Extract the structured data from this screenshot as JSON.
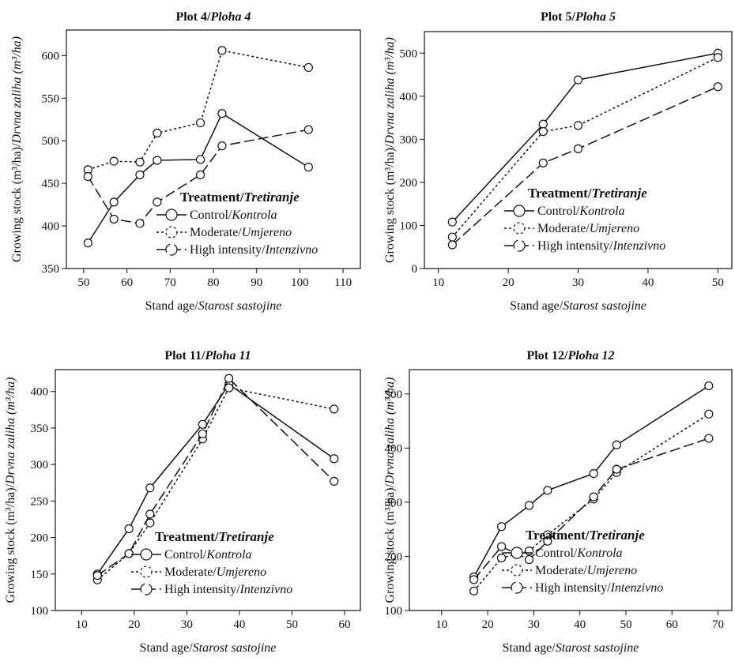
{
  "chart_data": [
    {
      "type": "line",
      "title": "Plot 4/",
      "title_italic": "Ploha 4",
      "xlabel": "Stand age/",
      "xlabel_italic": "Starost sastojine",
      "ylabel": "Growing stock (m³/ha)/",
      "ylabel_italic": "Drvna zaliha (m³/ha)",
      "xlim": [
        46,
        114
      ],
      "ylim": [
        350,
        630
      ],
      "xticks": [
        50,
        60,
        70,
        80,
        90,
        100,
        110
      ],
      "yticks": [
        350,
        400,
        450,
        500,
        550,
        600
      ],
      "legend_position": "bottom-right",
      "series": [
        {
          "name": "Control/",
          "name_italic": "Kontrola",
          "dash": "solid",
          "x": [
            51,
            57,
            63,
            67,
            77,
            82,
            102
          ],
          "y": [
            380,
            428,
            460,
            477,
            478,
            532,
            469
          ]
        },
        {
          "name": "Moderate/",
          "name_italic": "Umjereno",
          "dash": "dotted",
          "x": [
            51,
            57,
            63,
            67,
            77,
            82,
            102
          ],
          "y": [
            466,
            476,
            475,
            509,
            521,
            606,
            586
          ]
        },
        {
          "name": "High intensity/",
          "name_italic": "Intenzivno",
          "dash": "dashed",
          "x": [
            51,
            57,
            63,
            67,
            77,
            82,
            102
          ],
          "y": [
            458,
            408,
            403,
            428,
            460,
            494,
            513
          ]
        }
      ]
    },
    {
      "type": "line",
      "title": "Plot 5/",
      "title_italic": "Ploha 5",
      "xlabel": "Stand age/",
      "xlabel_italic": "Starost sastojine",
      "ylabel": "Growing stock (m³/ha)/",
      "ylabel_italic": "Drvna zaliha (m³/ha)",
      "xlim": [
        8,
        52
      ],
      "ylim": [
        0,
        550
      ],
      "xticks": [
        10,
        20,
        30,
        40,
        50
      ],
      "yticks": [
        0,
        100,
        200,
        300,
        400,
        500
      ],
      "legend_position": "bottom-right",
      "series": [
        {
          "name": "Control/",
          "name_italic": "Kontrola",
          "dash": "solid",
          "x": [
            12,
            25,
            30,
            50
          ],
          "y": [
            108,
            335,
            438,
            500
          ]
        },
        {
          "name": "Moderate/",
          "name_italic": "Umjereno",
          "dash": "dotted",
          "x": [
            12,
            25,
            30,
            50
          ],
          "y": [
            73,
            318,
            332,
            490
          ]
        },
        {
          "name": "High intensity/",
          "name_italic": "Intenzivno",
          "dash": "dashed",
          "x": [
            12,
            25,
            30,
            50
          ],
          "y": [
            55,
            245,
            278,
            422
          ]
        }
      ]
    },
    {
      "type": "line",
      "title": "Plot 11/",
      "title_italic": "Ploha 11",
      "xlabel": "Stand age/",
      "xlabel_italic": "Starost sastojine",
      "ylabel": "Growing stock (m³/ha)/",
      "ylabel_italic": "Drvna zaliha (m³/ha)",
      "xlim": [
        5,
        63
      ],
      "ylim": [
        100,
        430
      ],
      "xticks": [
        10,
        20,
        30,
        40,
        50,
        60
      ],
      "yticks": [
        100,
        150,
        200,
        250,
        300,
        350,
        400
      ],
      "legend_position": "bottom-right",
      "series": [
        {
          "name": "Control/",
          "name_italic": "Kontrola",
          "dash": "solid",
          "x": [
            13,
            19,
            23,
            33,
            38,
            58
          ],
          "y": [
            150,
            212,
            268,
            355,
            410,
            308
          ]
        },
        {
          "name": "Moderate/",
          "name_italic": "Umjereno",
          "dash": "dotted",
          "x": [
            13,
            19,
            23,
            33,
            38,
            58
          ],
          "y": [
            142,
            178,
            220,
            335,
            405,
            376
          ]
        },
        {
          "name": "High intensity/",
          "name_italic": "Intenzivno",
          "dash": "dashed",
          "x": [
            13,
            19,
            23,
            33,
            38,
            58
          ],
          "y": [
            148,
            178,
            232,
            342,
            418,
            277
          ]
        }
      ]
    },
    {
      "type": "line",
      "title": "Plot 12/",
      "title_italic": "Ploha 12",
      "xlabel": "Stand age/",
      "xlabel_italic": "Starost sastojine",
      "ylabel": "Growing stock (m³/ha)/",
      "ylabel_italic": "Drvna zaliha (m³/ha)",
      "xlim": [
        3,
        73
      ],
      "ylim": [
        100,
        545
      ],
      "xticks": [
        10,
        20,
        30,
        40,
        50,
        60,
        70
      ],
      "yticks": [
        100,
        200,
        300,
        400,
        500
      ],
      "legend_position": "bottom-right",
      "series": [
        {
          "name": "Control/",
          "name_italic": "Kontrola",
          "dash": "solid",
          "x": [
            17,
            23,
            29,
            33,
            43,
            48,
            68
          ],
          "y": [
            162,
            255,
            294,
            322,
            353,
            406,
            515
          ]
        },
        {
          "name": "Moderate/",
          "name_italic": "Umjereno",
          "dash": "dotted",
          "x": [
            17,
            23,
            29,
            33,
            43,
            48,
            68
          ],
          "y": [
            136,
            197,
            210,
            240,
            306,
            355,
            463
          ]
        },
        {
          "name": "High intensity/",
          "name_italic": "Intenzivno",
          "dash": "dashed",
          "x": [
            17,
            23,
            29,
            33,
            43,
            48,
            68
          ],
          "y": [
            157,
            218,
            194,
            228,
            310,
            361,
            418
          ]
        }
      ]
    }
  ]
}
